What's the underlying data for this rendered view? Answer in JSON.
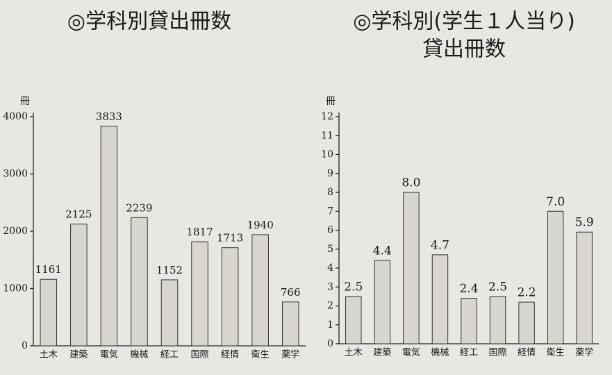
{
  "chart_data": [
    {
      "type": "bar",
      "title": "◎学科別貸出冊数",
      "y_label": "冊",
      "categories": [
        "土木",
        "建築",
        "電気",
        "機械",
        "経工",
        "国際",
        "経情",
        "衛生",
        "薬学"
      ],
      "values": [
        1161,
        2125,
        3833,
        2239,
        1152,
        1817,
        1713,
        1940,
        766
      ],
      "color": "#d9d6cf",
      "ylim": [
        0,
        4000
      ],
      "yticks": [
        0,
        1000,
        2000,
        3000,
        4000
      ]
    },
    {
      "type": "bar",
      "title": [
        "◎学科別(学生１人当り)",
        "貸出冊数"
      ],
      "y_label": "冊",
      "categories": [
        "土木",
        "建築",
        "電気",
        "機械",
        "経工",
        "国際",
        "経情",
        "衛生",
        "薬学"
      ],
      "values": [
        2.5,
        4.4,
        8.0,
        4.7,
        2.4,
        2.5,
        2.2,
        7.0,
        5.9
      ],
      "value_labels": [
        "2.5",
        "4.4",
        "8.0",
        "4.7",
        "2.4",
        "2.5",
        "2.2",
        "7.0",
        "5.9"
      ],
      "color": "#d9d6cf",
      "ylim": [
        0,
        12
      ],
      "yticks": [
        0,
        1,
        2,
        3,
        4,
        5,
        6,
        7,
        8,
        9,
        10,
        11,
        12
      ]
    }
  ]
}
